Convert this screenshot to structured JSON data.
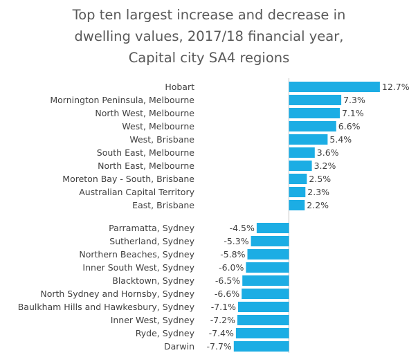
{
  "title_lines": [
    "Top ten largest increase and decrease in",
    "dwelling values, 2017/18 financial year,",
    "Capital city SA4 regions"
  ],
  "colors": {
    "bar": "#1CADE4",
    "axis": "#BFBFBF",
    "text": "#404040",
    "title": "#595959"
  },
  "chart_data": [
    {
      "type": "bar",
      "orientation": "horizontal",
      "group": "increase",
      "categories": [
        "Hobart",
        "Mornington Peninsula, Melbourne",
        "North West, Melbourne",
        "West, Melbourne",
        "West, Brisbane",
        "South East, Melbourne",
        "North East, Melbourne",
        "Moreton Bay - South, Brisbane",
        "Australian Capital Territory",
        "East, Brisbane"
      ],
      "values": [
        12.7,
        7.3,
        7.1,
        6.6,
        5.4,
        3.6,
        3.2,
        2.5,
        2.3,
        2.2
      ],
      "labels": [
        "12.7%",
        "7.3%",
        "7.1%",
        "6.6%",
        "5.4%",
        "3.6%",
        "3.2%",
        "2.5%",
        "2.3%",
        "2.2%"
      ]
    },
    {
      "type": "bar",
      "orientation": "horizontal",
      "group": "decrease",
      "categories": [
        "Parramatta, Sydney",
        "Sutherland, Sydney",
        "Northern Beaches, Sydney",
        "Inner South West, Sydney",
        "Blacktown, Sydney",
        "North Sydney and Hornsby, Sydney",
        "Baulkham Hills and Hawkesbury, Sydney",
        "Inner West, Sydney",
        "Ryde, Sydney",
        "Darwin"
      ],
      "values": [
        -4.5,
        -5.3,
        -5.8,
        -6.0,
        -6.5,
        -6.6,
        -7.1,
        -7.2,
        -7.4,
        -7.7
      ],
      "labels": [
        "-4.5%",
        "-5.3%",
        "-5.8%",
        "-6.0%",
        "-6.5%",
        "-6.6%",
        "-7.1%",
        "-7.2%",
        "-7.4%",
        "-7.7%"
      ]
    }
  ]
}
